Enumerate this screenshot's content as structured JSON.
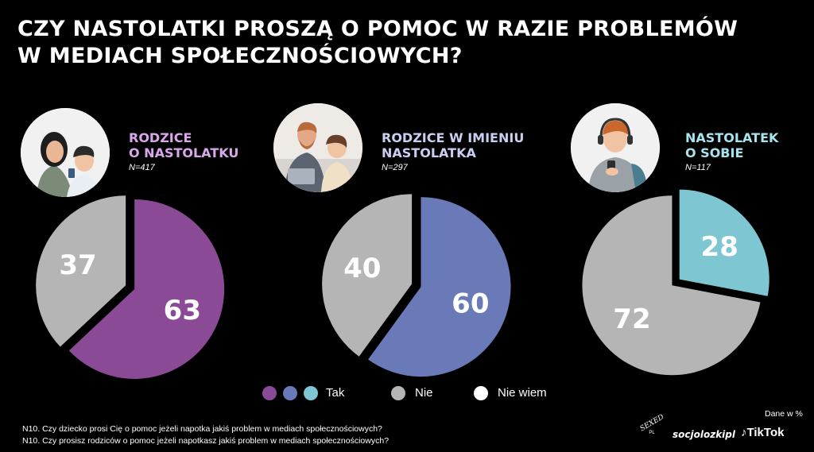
{
  "title": {
    "line1": "CZY NASTOLATKI PROSZĄ O POMOC W RAZIE PROBLEMÓW",
    "line2": "W MEDIACH SPOŁECZNOŚCIOWYCH?"
  },
  "groups": [
    {
      "heading": [
        "RODZICE",
        "O NASTOLATKU"
      ],
      "n": "N=417",
      "color": "#d9a8ec"
    },
    {
      "heading": [
        "RODZICE W IMIENIU",
        "NASTOLATKA"
      ],
      "n": "N=297",
      "color": "#c9cff0"
    },
    {
      "heading": [
        "NASTOLATEK",
        "O SOBIE"
      ],
      "n": "N=117",
      "color": "#a6e5ef"
    }
  ],
  "legend": {
    "tak": "Tak",
    "nie": "Nie",
    "nie_wiem": "Nie wiem"
  },
  "colors": {
    "tak": [
      "#8b4a95",
      "#6a7ab8",
      "#7ec6d2"
    ],
    "nie": "#b5b5b5",
    "nie_wiem": "#ffffff"
  },
  "chart_data": [
    {
      "type": "pie",
      "title": "RODZICE O NASTOLATKU",
      "categories": [
        "Tak",
        "Nie"
      ],
      "values": [
        63,
        37
      ],
      "unit": "%"
    },
    {
      "type": "pie",
      "title": "RODZICE W IMIENIU NASTOLATKA",
      "categories": [
        "Tak",
        "Nie"
      ],
      "values": [
        60,
        40
      ],
      "unit": "%"
    },
    {
      "type": "pie",
      "title": "NASTOLATEK O SOBIE",
      "categories": [
        "Tak",
        "Nie"
      ],
      "values": [
        28,
        72
      ],
      "unit": "%"
    }
  ],
  "footnotes": [
    "N10. Czy dziecko prosi Cię o pomoc jeżeli napotka jakiś problem w mediach społecznościowych?",
    "N10. Czy prosisz rodziców o pomoc jeżeli napotkasz jakiś problem w mediach społecznościowych?"
  ],
  "unit_note": "Dane w %",
  "logos": {
    "sexed": "SEXED",
    "sexed_sub": "PL",
    "socjolozki": "socjolozkipl",
    "tiktok": "TikTok"
  }
}
